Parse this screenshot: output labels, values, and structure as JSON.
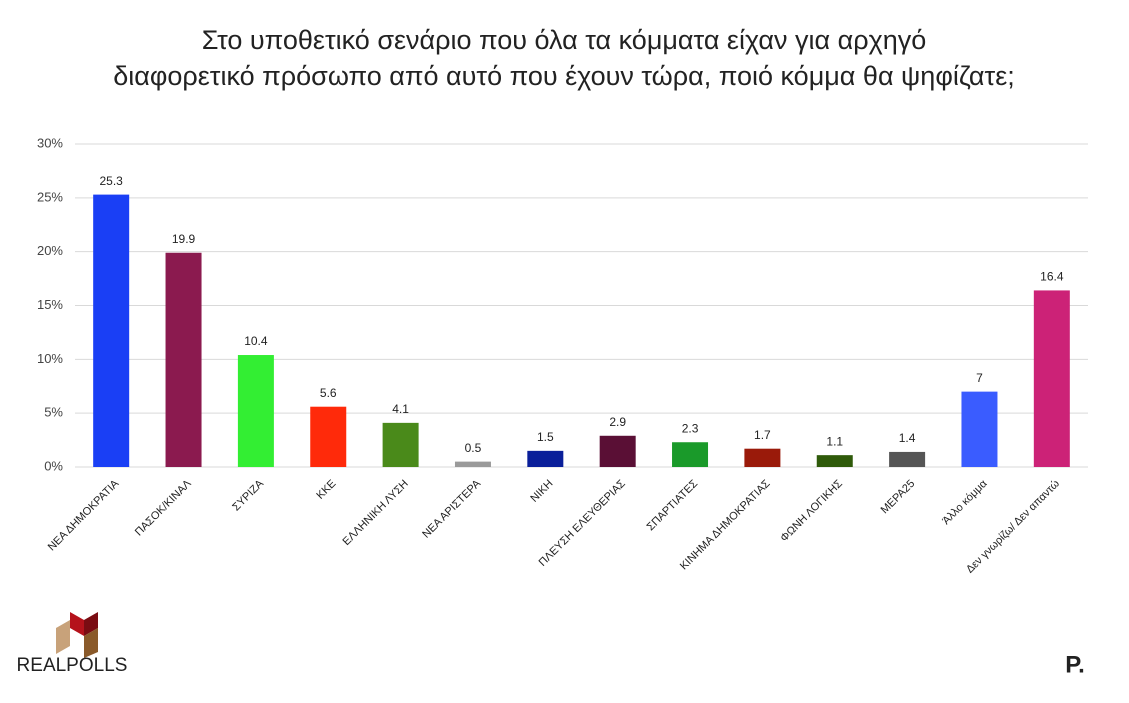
{
  "chart_data": {
    "type": "bar",
    "title": [
      "Στο υποθετικό σενάριο που όλα τα κόμματα είχαν για αρχηγό",
      "διαφορετικό πρόσωπο από αυτό που έχουν τώρα, ποιό κόμμα θα ψηφίζατε;"
    ],
    "categories": [
      "ΝΕΑ ΔΗΜΟΚΡΑΤΙΑ",
      "ΠΑΣΟΚ/ΚΙΝΑΛ",
      "ΣΥΡΙΖΑ",
      "ΚΚΕ",
      "ΕΛΛΗΝΙΚΗ ΛΥΣΗ",
      "ΝΕΑ ΑΡΙΣΤΕΡΑ",
      "ΝΙΚΗ",
      "ΠΛΕΥΣΗ ΕΛΕΥΘΕΡΙΑΣ",
      "ΣΠΑΡΤΙΑΤΕΣ",
      "ΚΙΝΗΜΑ ΔΗΜΟΚΡΑΤΙΑΣ",
      "ΦΩΝΗ ΛΟΓΙΚΗΣ",
      "ΜΕΡΑ25",
      "Άλλο κόμμα",
      "Δεν γνωρίζω/ Δεν απαντώ"
    ],
    "values": [
      25.3,
      19.9,
      10.4,
      5.6,
      4.1,
      0.5,
      1.5,
      2.9,
      2.3,
      1.7,
      1.1,
      1.4,
      7,
      16.4
    ],
    "colors": [
      "#1a3ff5",
      "#8b1a4f",
      "#33ee33",
      "#ff2a0a",
      "#4a8a1a",
      "#9a9a9a",
      "#0a1f9a",
      "#5a0f35",
      "#1a9a2a",
      "#9a1a0a",
      "#2f5a0a",
      "#555555",
      "#3a5cff",
      "#cc2277"
    ],
    "ylim": [
      0,
      30
    ],
    "yticks": [
      {
        "value": 0,
        "label": "0%"
      },
      {
        "value": 5,
        "label": "5%"
      },
      {
        "value": 10,
        "label": "10%"
      },
      {
        "value": 15,
        "label": "15%"
      },
      {
        "value": 20,
        "label": "20%"
      },
      {
        "value": 25,
        "label": "25%"
      },
      {
        "value": 30,
        "label": "30%"
      }
    ],
    "grid": true,
    "source_logo": "REALPOLLS",
    "brand_logo": "P."
  }
}
